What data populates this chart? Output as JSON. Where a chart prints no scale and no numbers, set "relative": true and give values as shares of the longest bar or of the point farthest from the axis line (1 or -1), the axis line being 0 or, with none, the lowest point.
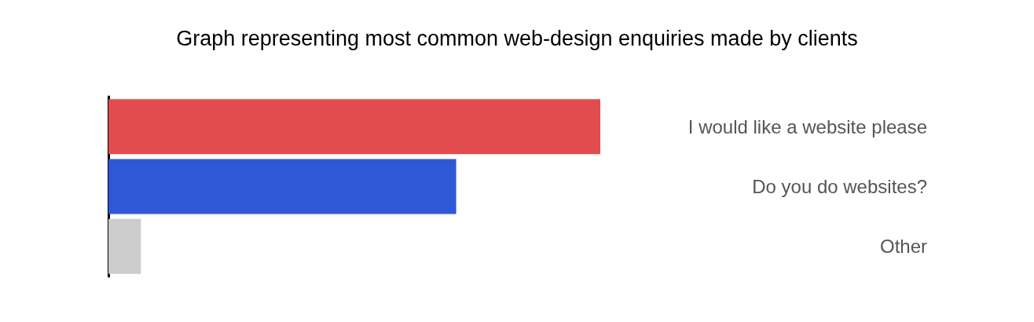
{
  "chart_data": {
    "type": "bar",
    "orientation": "horizontal",
    "relative": true,
    "title": "Graph representing most common web-design enquiries made by clients",
    "categories": [
      "I would like a website please",
      "Do you do websites?",
      "Other"
    ],
    "values": [
      1,
      0.707,
      0.066
    ],
    "colors": [
      "#e34c4e",
      "#2f58d6",
      "#cccccc"
    ]
  }
}
